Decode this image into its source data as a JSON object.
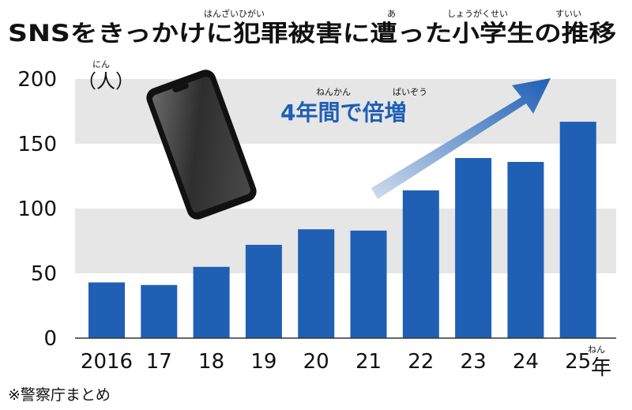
{
  "chart_data": {
    "type": "bar",
    "title": "SNSをきっかけに犯罪被害に遭った小学生の推移",
    "title_ruby": [
      {
        "over": "犯罪被害",
        "text": "はんざいひがい"
      },
      {
        "over": "遭",
        "text": "あ"
      },
      {
        "over": "小学生",
        "text": "しょうがくせい"
      },
      {
        "over": "推移",
        "text": "すいい"
      }
    ],
    "unit": "（人）",
    "unit_ruby": "にん",
    "categories": [
      "2016",
      "17",
      "18",
      "19",
      "20",
      "21",
      "22",
      "23",
      "24",
      "25"
    ],
    "values": [
      43,
      41,
      55,
      72,
      84,
      83,
      114,
      139,
      136,
      167
    ],
    "year_suffix": "年",
    "year_suffix_ruby": "ねん",
    "yticks": [
      "0",
      "50",
      "100",
      "150",
      "200"
    ],
    "ylim": [
      0,
      200
    ],
    "annotation": "4年間で倍増",
    "annotation_ruby": [
      {
        "over": "年間",
        "text": "ねんかん"
      },
      {
        "over": "倍増",
        "text": "ばいぞう"
      }
    ],
    "source": "※警察庁まとめ",
    "colors": {
      "bar": "#1f5fb4",
      "band": "#e6e6e6",
      "arrow_start": "#cfdcef",
      "arrow_end": "#1f5fb4",
      "annotation": "#1f5fb4",
      "phone_screen": "#333333"
    }
  }
}
